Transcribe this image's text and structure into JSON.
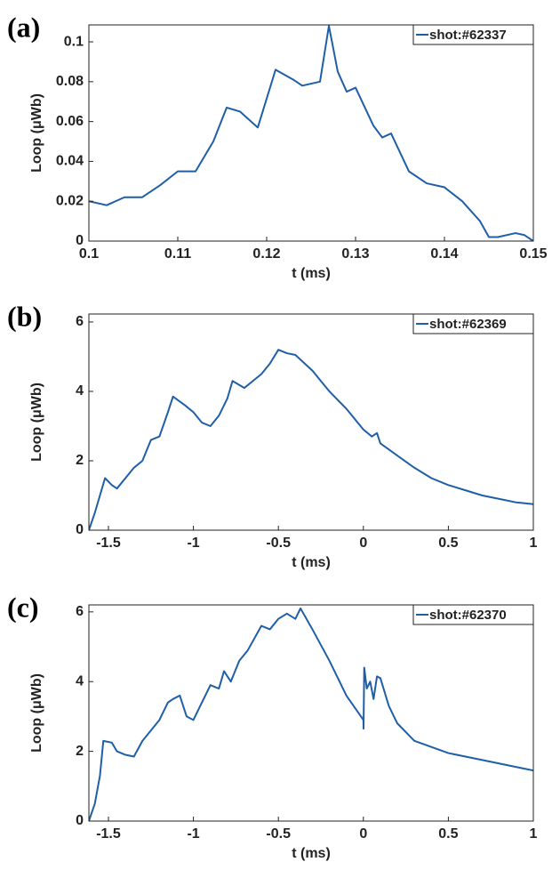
{
  "chart_data": [
    {
      "type": "line",
      "panel_label": "(a)",
      "xlabel": "t (ms)",
      "ylabel": "Loop (μWb)",
      "xlim": [
        0.1,
        0.15
      ],
      "xticks": [
        0.1,
        0.11,
        0.12,
        0.13,
        0.14,
        0.15
      ],
      "ylim": [
        0,
        0.1085
      ],
      "yticks": [
        0,
        0.02,
        0.04,
        0.06,
        0.08,
        0.1
      ],
      "legend": "upper right",
      "series": [
        {
          "name": "shot:#62337",
          "color": "#1f5fa8",
          "x": [
            0.1,
            0.102,
            0.104,
            0.106,
            0.108,
            0.11,
            0.112,
            0.114,
            0.1155,
            0.117,
            0.119,
            0.121,
            0.123,
            0.124,
            0.126,
            0.127,
            0.128,
            0.129,
            0.13,
            0.132,
            0.133,
            0.134,
            0.136,
            0.138,
            0.14,
            0.142,
            0.144,
            0.145,
            0.146,
            0.148,
            0.149,
            0.15
          ],
          "values": [
            0.02,
            0.018,
            0.022,
            0.022,
            0.028,
            0.035,
            0.035,
            0.05,
            0.067,
            0.065,
            0.057,
            0.086,
            0.081,
            0.078,
            0.08,
            0.108,
            0.085,
            0.075,
            0.077,
            0.058,
            0.052,
            0.054,
            0.035,
            0.029,
            0.027,
            0.02,
            0.01,
            0.002,
            0.002,
            0.004,
            0.003,
            0
          ]
        }
      ]
    },
    {
      "type": "line",
      "panel_label": "(b)",
      "xlabel": "t (ms)",
      "ylabel": "Loop (μWb)",
      "xlim": [
        -1.615,
        1
      ],
      "xticks": [
        -1.5,
        -1,
        -0.5,
        0,
        0.5,
        1
      ],
      "ylim": [
        0,
        6.23
      ],
      "yticks": [
        0,
        2,
        4,
        6
      ],
      "legend": "upper right",
      "series": [
        {
          "name": "shot:#62369",
          "color": "#1f5fa8",
          "x": [
            -1.615,
            -1.58,
            -1.55,
            -1.52,
            -1.48,
            -1.45,
            -1.4,
            -1.35,
            -1.3,
            -1.25,
            -1.2,
            -1.15,
            -1.12,
            -1.05,
            -1.0,
            -0.95,
            -0.9,
            -0.85,
            -0.8,
            -0.77,
            -0.7,
            -0.65,
            -0.6,
            -0.55,
            -0.5,
            -0.45,
            -0.4,
            -0.3,
            -0.2,
            -0.1,
            0,
            0.05,
            0.08,
            0.1,
            0.2,
            0.3,
            0.4,
            0.5,
            0.6,
            0.7,
            0.8,
            0.9,
            1.0
          ],
          "values": [
            0,
            0.5,
            1.0,
            1.5,
            1.3,
            1.2,
            1.5,
            1.8,
            2.0,
            2.6,
            2.7,
            3.4,
            3.85,
            3.6,
            3.4,
            3.1,
            3.0,
            3.3,
            3.8,
            4.3,
            4.1,
            4.3,
            4.5,
            4.8,
            5.2,
            5.1,
            5.05,
            4.6,
            4.0,
            3.5,
            2.9,
            2.7,
            2.8,
            2.5,
            2.15,
            1.8,
            1.5,
            1.3,
            1.15,
            1.0,
            0.9,
            0.8,
            0.75
          ]
        }
      ]
    },
    {
      "type": "line",
      "panel_label": "(c)",
      "xlabel": "t (ms)",
      "ylabel": "Loop (μWb)",
      "xlim": [
        -1.615,
        1
      ],
      "xticks": [
        -1.5,
        -1,
        -0.5,
        0,
        0.5,
        1
      ],
      "ylim": [
        0,
        6.2
      ],
      "yticks": [
        0,
        2,
        4,
        6
      ],
      "legend": "upper right",
      "series": [
        {
          "name": "shot:#62370",
          "color": "#1f5fa8",
          "x": [
            -1.615,
            -1.58,
            -1.55,
            -1.53,
            -1.48,
            -1.45,
            -1.4,
            -1.35,
            -1.3,
            -1.25,
            -1.2,
            -1.15,
            -1.12,
            -1.08,
            -1.04,
            -1.0,
            -0.95,
            -0.9,
            -0.85,
            -0.82,
            -0.78,
            -0.73,
            -0.68,
            -0.6,
            -0.55,
            -0.5,
            -0.45,
            -0.4,
            -0.37,
            -0.3,
            -0.2,
            -0.1,
            0,
            0.001,
            0.005,
            0.02,
            0.04,
            0.06,
            0.08,
            0.1,
            0.15,
            0.2,
            0.3,
            0.5,
            0.7,
            0.9,
            1.0
          ],
          "values": [
            0,
            0.5,
            1.3,
            2.3,
            2.25,
            2.0,
            1.9,
            1.85,
            2.3,
            2.6,
            2.9,
            3.4,
            3.5,
            3.6,
            3.0,
            2.9,
            3.4,
            3.9,
            3.8,
            4.3,
            4.0,
            4.6,
            4.9,
            5.6,
            5.5,
            5.8,
            5.95,
            5.8,
            6.1,
            5.5,
            4.6,
            3.6,
            2.9,
            2.65,
            4.4,
            3.8,
            4.0,
            3.5,
            4.15,
            4.1,
            3.3,
            2.8,
            2.3,
            1.95,
            1.75,
            1.55,
            1.45
          ]
        }
      ]
    }
  ]
}
